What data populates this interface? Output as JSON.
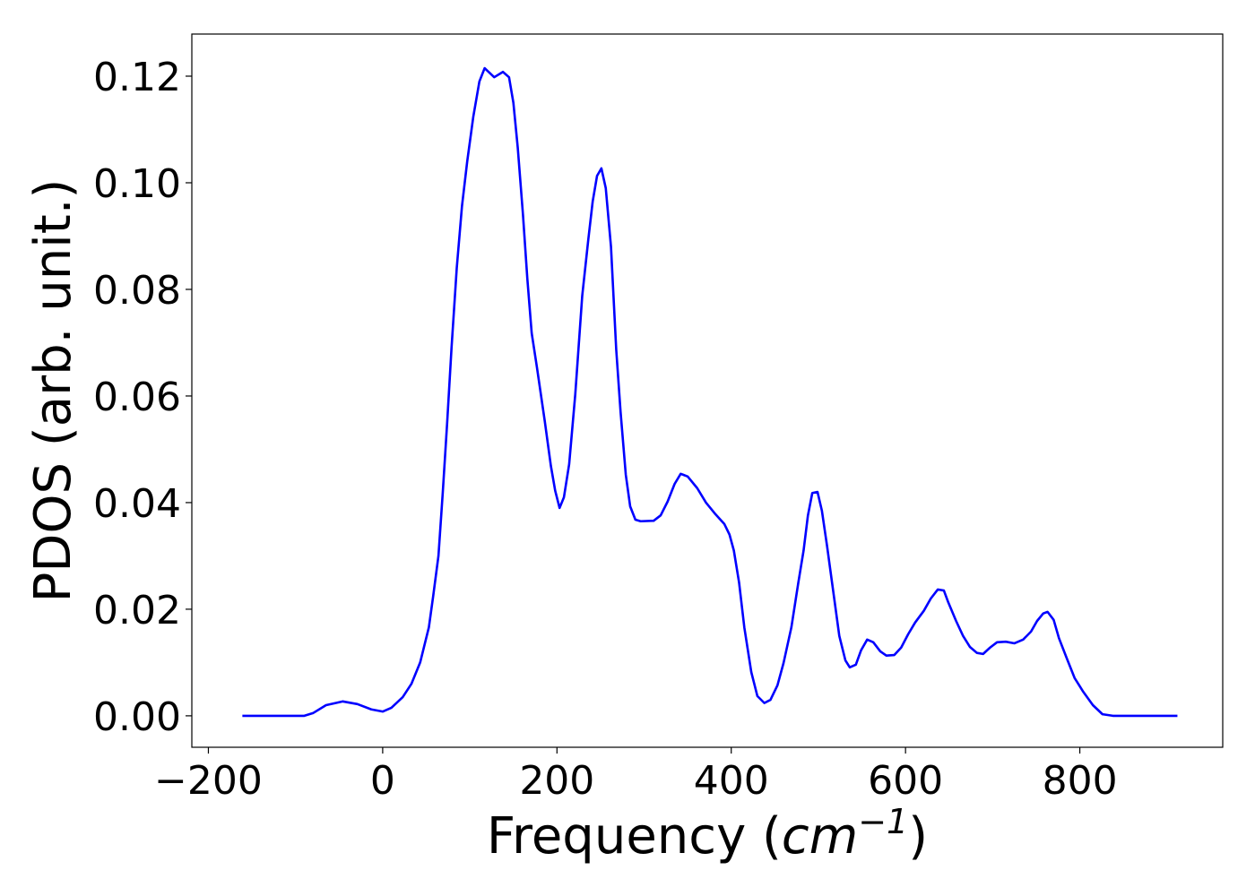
{
  "chart_data": {
    "type": "line",
    "xlabel": [
      "Frequency (",
      "cm",
      "−1",
      ")"
    ],
    "ylabel": "PDOS (arb. unit.)",
    "x": [
      -161,
      -90,
      -80,
      -65,
      -46,
      -29,
      -13,
      0,
      10,
      23,
      33,
      43,
      53,
      58,
      64,
      69,
      74,
      79,
      85,
      91,
      97,
      104,
      111,
      117,
      128,
      138,
      145,
      150,
      155,
      161,
      166,
      171,
      177,
      186,
      193,
      198,
      203,
      208,
      214,
      221,
      229,
      236,
      241,
      246,
      251,
      256,
      262,
      268,
      273,
      279,
      284,
      290,
      296,
      311,
      319,
      327,
      335,
      342,
      350,
      361,
      371,
      382,
      392,
      398,
      403,
      409,
      415,
      423,
      430,
      438,
      445,
      453,
      460,
      469,
      477,
      483,
      488,
      493,
      499,
      504,
      510,
      517,
      524,
      531,
      536,
      543,
      549,
      556,
      563,
      571,
      578,
      587,
      595,
      603,
      611,
      621,
      629,
      637,
      644,
      649,
      658,
      666,
      674,
      682,
      689,
      697,
      705,
      715,
      725,
      735,
      744,
      751,
      758,
      763,
      770,
      776,
      785,
      794,
      804,
      815,
      826,
      838,
      912
    ],
    "series": [
      {
        "color": "#0000ff",
        "values": [
          0,
          0,
          0.0005,
          0.002,
          0.0027,
          0.0022,
          0.0012,
          0.0008,
          0.0015,
          0.0035,
          0.006,
          0.01,
          0.0166,
          0.0225,
          0.03,
          0.042,
          0.055,
          0.069,
          0.084,
          0.0956,
          0.104,
          0.1124,
          0.119,
          0.1215,
          0.1198,
          0.1208,
          0.1198,
          0.115,
          0.1066,
          0.094,
          0.082,
          0.0718,
          0.0654,
          0.0553,
          0.0469,
          0.0422,
          0.039,
          0.041,
          0.0472,
          0.0603,
          0.0788,
          0.0894,
          0.0965,
          0.1013,
          0.1027,
          0.099,
          0.088,
          0.0687,
          0.057,
          0.0452,
          0.0393,
          0.0368,
          0.0365,
          0.0366,
          0.0376,
          0.0402,
          0.0435,
          0.0454,
          0.0449,
          0.0427,
          0.04,
          0.0378,
          0.036,
          0.034,
          0.031,
          0.025,
          0.0166,
          0.0082,
          0.0037,
          0.0024,
          0.003,
          0.0057,
          0.0099,
          0.0166,
          0.025,
          0.031,
          0.0376,
          0.0418,
          0.042,
          0.0385,
          0.0318,
          0.0234,
          0.015,
          0.0104,
          0.0091,
          0.0096,
          0.0123,
          0.0143,
          0.0138,
          0.0121,
          0.0113,
          0.0114,
          0.0128,
          0.0153,
          0.0175,
          0.0197,
          0.022,
          0.0237,
          0.0235,
          0.0213,
          0.0178,
          0.015,
          0.0129,
          0.0118,
          0.0116,
          0.0128,
          0.0138,
          0.0139,
          0.0136,
          0.0143,
          0.0158,
          0.0178,
          0.0192,
          0.0195,
          0.018,
          0.0146,
          0.0108,
          0.0071,
          0.0045,
          0.002,
          0.0003,
          0,
          0
        ]
      }
    ],
    "xlim": [
      -219,
      964
    ],
    "ylim": [
      -0.0059,
      0.1279
    ],
    "xticks": [
      {
        "value": -200,
        "label": "−200"
      },
      0,
      200,
      400,
      600,
      800
    ],
    "yticks": [
      {
        "value": 0,
        "label": "0.00"
      },
      {
        "value": 0.02,
        "label": "0.02"
      },
      {
        "value": 0.04,
        "label": "0.04"
      },
      {
        "value": 0.06,
        "label": "0.06"
      },
      {
        "value": 0.08,
        "label": "0.08"
      },
      {
        "value": 0.1,
        "label": "0.10"
      },
      {
        "value": 0.12,
        "label": "0.12"
      }
    ]
  }
}
